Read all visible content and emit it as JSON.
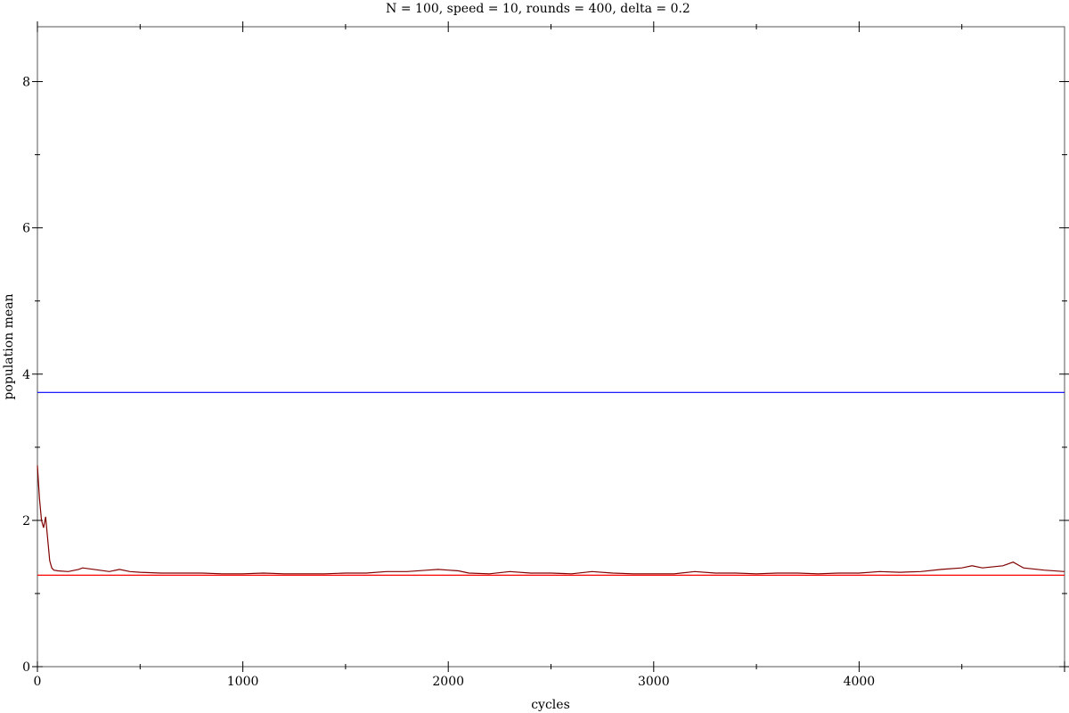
{
  "chart_data": {
    "type": "line",
    "title": "N = 100, speed = 10, rounds = 400, delta = 0.2",
    "xlabel": "cycles",
    "ylabel": "population mean",
    "xlim": [
      0,
      5000
    ],
    "ylim": [
      0,
      8.75
    ],
    "x_ticks": [
      0,
      1000,
      2000,
      3000,
      4000
    ],
    "y_ticks": [
      0,
      2,
      4,
      6,
      8
    ],
    "grid": false,
    "legend": "none",
    "series": [
      {
        "color": "#800000",
        "x": [
          0,
          10,
          20,
          30,
          40,
          50,
          60,
          70,
          80,
          100,
          150,
          200,
          220,
          300,
          350,
          400,
          450,
          500,
          600,
          700,
          800,
          900,
          1000,
          1100,
          1200,
          1300,
          1400,
          1500,
          1600,
          1700,
          1800,
          1900,
          1950,
          2000,
          2050,
          2100,
          2200,
          2300,
          2400,
          2500,
          2600,
          2700,
          2800,
          2900,
          3000,
          3100,
          3200,
          3300,
          3400,
          3500,
          3600,
          3700,
          3800,
          3900,
          4000,
          4100,
          4200,
          4300,
          4400,
          4500,
          4550,
          4600,
          4700,
          4750,
          4800,
          4900,
          5000
        ],
        "values": [
          2.75,
          2.3,
          2.0,
          1.9,
          2.05,
          1.75,
          1.45,
          1.35,
          1.32,
          1.31,
          1.3,
          1.33,
          1.35,
          1.32,
          1.3,
          1.33,
          1.3,
          1.29,
          1.28,
          1.28,
          1.28,
          1.27,
          1.27,
          1.28,
          1.27,
          1.27,
          1.27,
          1.28,
          1.28,
          1.3,
          1.3,
          1.32,
          1.33,
          1.32,
          1.31,
          1.28,
          1.27,
          1.3,
          1.28,
          1.28,
          1.27,
          1.3,
          1.28,
          1.27,
          1.27,
          1.27,
          1.3,
          1.28,
          1.28,
          1.27,
          1.28,
          1.28,
          1.27,
          1.28,
          1.28,
          1.3,
          1.29,
          1.3,
          1.33,
          1.35,
          1.38,
          1.35,
          1.38,
          1.43,
          1.35,
          1.32,
          1.3
        ]
      },
      {
        "color": "#0000ff",
        "x": [
          0,
          5000
        ],
        "values": [
          3.75,
          3.75
        ]
      },
      {
        "color": "#ff0000",
        "x": [
          0,
          5000
        ],
        "values": [
          1.25,
          1.25
        ]
      }
    ]
  }
}
